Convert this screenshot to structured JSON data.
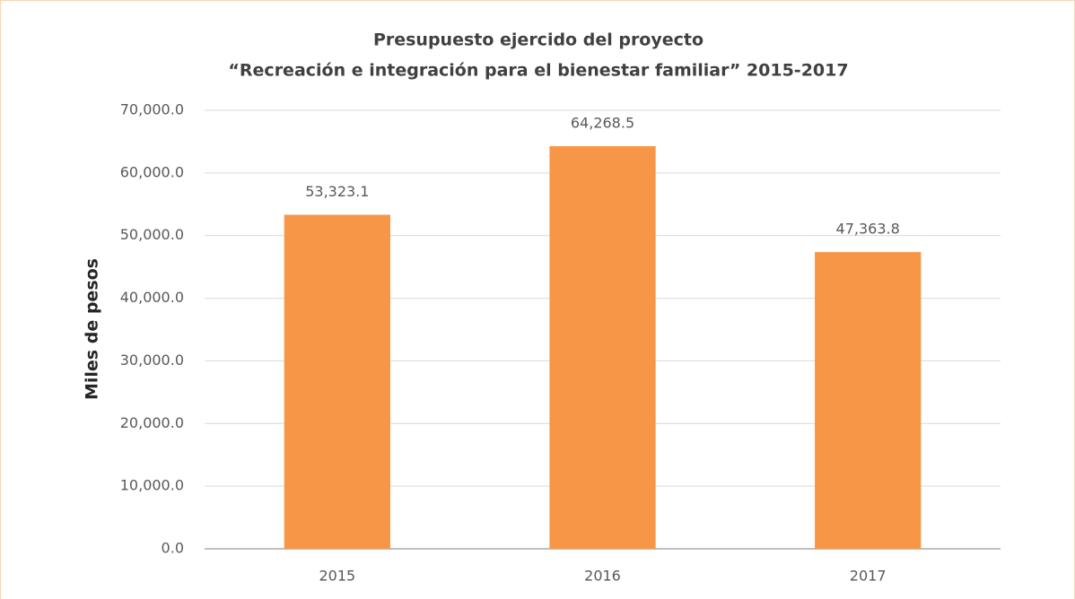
{
  "chart_data": {
    "type": "bar",
    "title": [
      "Presupuesto ejercido del proyecto",
      "“Recreación e integración para el bienestar familiar” 2015-2017"
    ],
    "ylabel": "Miles de pesos",
    "categories": [
      "2015",
      "2016",
      "2017"
    ],
    "values": [
      53323.1,
      64268.5,
      47363.8
    ],
    "value_labels": [
      "53,323.1",
      "64,268.5",
      "47,363.8"
    ],
    "color": "#f79646",
    "ylim": [
      0,
      70000
    ],
    "yticks": [
      {
        "value": 0,
        "label": "0.0"
      },
      {
        "value": 10000,
        "label": "10,000.0"
      },
      {
        "value": 20000,
        "label": "20,000.0"
      },
      {
        "value": 30000,
        "label": "30,000.0"
      },
      {
        "value": 40000,
        "label": "40,000.0"
      },
      {
        "value": 50000,
        "label": "50,000.0"
      },
      {
        "value": 60000,
        "label": "60,000.0"
      },
      {
        "value": 70000,
        "label": "70,000.0"
      }
    ],
    "grid": true
  }
}
